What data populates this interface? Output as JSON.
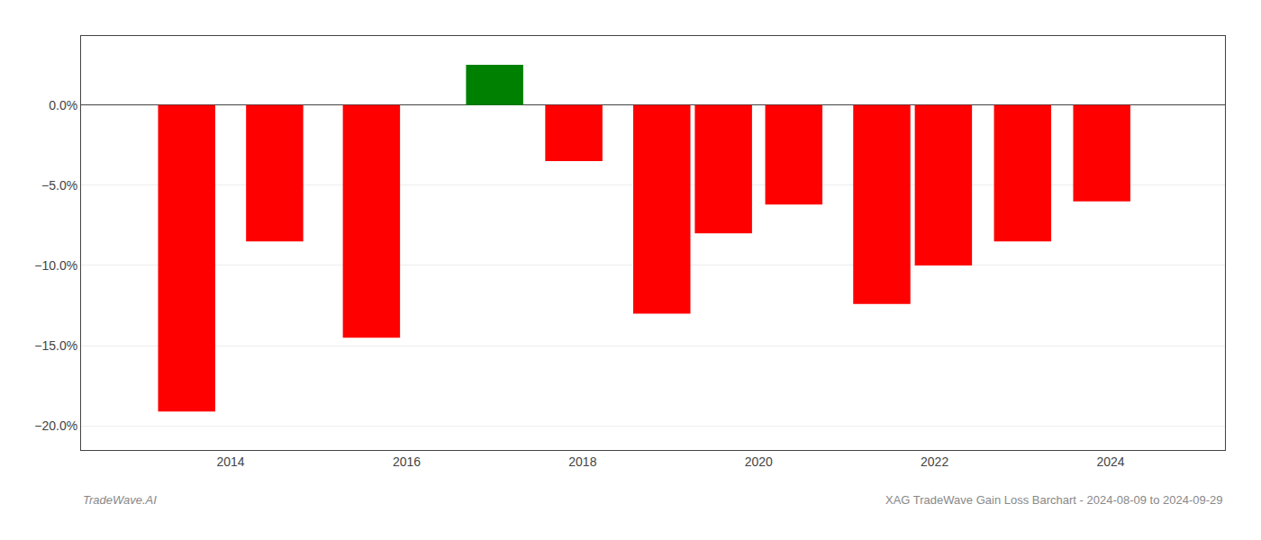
{
  "chart_data": {
    "type": "bar",
    "x": [
      2013.5,
      2014.5,
      2015.6,
      2017.0,
      2017.9,
      2018.9,
      2019.6,
      2020.4,
      2021.4,
      2022.1,
      2023.0,
      2023.9
    ],
    "values": [
      -0.191,
      -0.085,
      -0.145,
      0.025,
      -0.035,
      -0.13,
      -0.08,
      -0.062,
      -0.124,
      -0.1,
      -0.085,
      -0.06
    ],
    "colors": [
      "#ff0000",
      "#ff0000",
      "#ff0000",
      "#008000",
      "#ff0000",
      "#ff0000",
      "#ff0000",
      "#ff0000",
      "#ff0000",
      "#ff0000",
      "#ff0000",
      "#ff0000"
    ],
    "xlim": [
      2012.3,
      2025.3
    ],
    "xticks": [
      2014,
      2016,
      2018,
      2020,
      2022,
      2024
    ],
    "ylim": [
      -0.215,
      0.043
    ],
    "yticks": [
      {
        "value": -0.2,
        "label": "−20.0%"
      },
      {
        "value": -0.15,
        "label": "−15.0%"
      },
      {
        "value": -0.1,
        "label": "−10.0%"
      },
      {
        "value": -0.05,
        "label": "−5.0%"
      },
      {
        "value": 0.0,
        "label": "0.0%"
      }
    ],
    "grid": "y",
    "annotations": [
      "TradeWave.AI",
      "XAG TradeWave Gain Loss Barchart - 2024-08-09 to 2024-09-29"
    ]
  }
}
